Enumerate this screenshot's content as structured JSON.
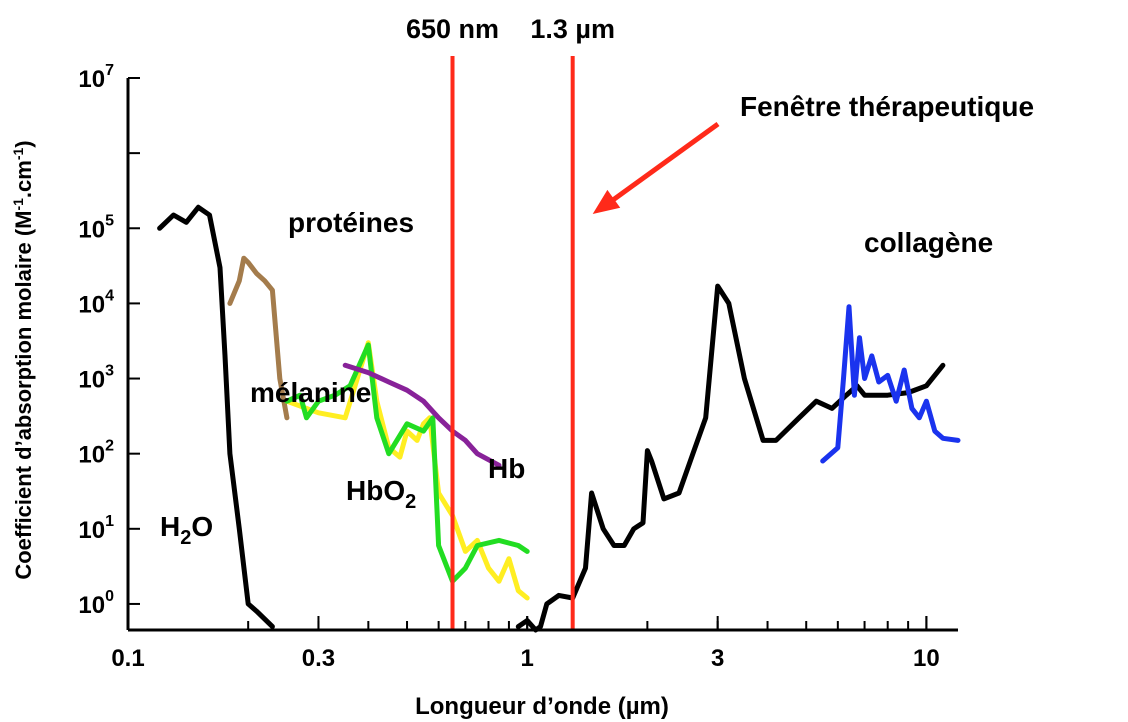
{
  "chart_data": {
    "type": "line",
    "xlabel": "Longueur d’onde (µm)",
    "ylabel": "Coefficient d’absorption molaire (M-1.cm-1)",
    "xscale": "log",
    "yscale": "log",
    "xlim": [
      0.1,
      12
    ],
    "ylim": [
      0.45,
      10000000.0
    ],
    "x_ticks": [
      {
        "value": 0.1,
        "label": "0.1"
      },
      {
        "value": 0.3,
        "label": "0.3"
      },
      {
        "value": 1,
        "label": "1"
      },
      {
        "value": 3,
        "label": "3"
      },
      {
        "value": 10,
        "label": "10"
      }
    ],
    "y_ticks": [
      {
        "value": 1,
        "base": "10",
        "exp": "0"
      },
      {
        "value": 10,
        "base": "10",
        "exp": "1"
      },
      {
        "value": 100,
        "base": "10",
        "exp": "2"
      },
      {
        "value": 1000,
        "base": "10",
        "exp": "3"
      },
      {
        "value": 10000,
        "base": "10",
        "exp": "4"
      },
      {
        "value": 100000,
        "base": "10",
        "exp": "5"
      },
      {
        "value": 10000000,
        "base": "10",
        "exp": "7"
      }
    ],
    "vlines": [
      {
        "x": 0.65,
        "label": "650 nm",
        "color": "#ff2a1a"
      },
      {
        "x": 1.3,
        "label": "1.3 µm",
        "color": "#ff2a1a"
      }
    ],
    "annotation": {
      "text": "Fenêtre thérapeutique",
      "color": "#ff2a1a"
    },
    "series": [
      {
        "name": "H2O",
        "color": "#000000",
        "points": [
          [
            0.12,
            100000
          ],
          [
            0.13,
            150000
          ],
          [
            0.14,
            120000
          ],
          [
            0.15,
            190000
          ],
          [
            0.16,
            150000
          ],
          [
            0.17,
            30000
          ],
          [
            0.175,
            2000
          ],
          [
            0.18,
            100
          ],
          [
            0.19,
            10
          ],
          [
            0.2,
            1
          ],
          [
            0.21,
            0.8
          ],
          [
            0.23,
            0.5
          ]
        ]
      },
      {
        "name": "",
        "color": "#000000",
        "points": [
          [
            0.95,
            0.5
          ],
          [
            1.0,
            0.6
          ],
          [
            1.05,
            0.45
          ],
          [
            1.08,
            0.5
          ],
          [
            1.12,
            1.0
          ],
          [
            1.2,
            1.3
          ],
          [
            1.3,
            1.2
          ],
          [
            1.4,
            3
          ],
          [
            1.45,
            30
          ],
          [
            1.55,
            10
          ],
          [
            1.65,
            6
          ],
          [
            1.75,
            6
          ],
          [
            1.85,
            10
          ],
          [
            1.95,
            12
          ],
          [
            2.0,
            110
          ],
          [
            2.05,
            80
          ],
          [
            2.2,
            25
          ],
          [
            2.4,
            30
          ],
          [
            2.6,
            100
          ],
          [
            2.8,
            300
          ],
          [
            3.0,
            17000
          ],
          [
            3.2,
            10000
          ],
          [
            3.5,
            1000
          ],
          [
            3.9,
            150
          ],
          [
            4.2,
            150
          ],
          [
            4.8,
            300
          ],
          [
            5.3,
            500
          ],
          [
            5.8,
            400
          ],
          [
            6.3,
            600
          ],
          [
            6.7,
            800
          ],
          [
            7.0,
            600
          ],
          [
            8.0,
            600
          ],
          [
            9.0,
            650
          ],
          [
            10.0,
            800
          ],
          [
            11.0,
            1500
          ]
        ]
      },
      {
        "name": "protéines",
        "color": "#a47c4c",
        "points": [
          [
            0.18,
            10000
          ],
          [
            0.19,
            20000
          ],
          [
            0.195,
            40000
          ],
          [
            0.2,
            35000
          ],
          [
            0.21,
            25000
          ],
          [
            0.22,
            20000
          ],
          [
            0.23,
            15000
          ],
          [
            0.24,
            1000
          ],
          [
            0.25,
            300
          ]
        ]
      },
      {
        "name": "Hb",
        "color": "#ffee22",
        "points": [
          [
            0.25,
            500
          ],
          [
            0.3,
            350
          ],
          [
            0.35,
            300
          ],
          [
            0.4,
            3000
          ],
          [
            0.42,
            500
          ],
          [
            0.45,
            120
          ],
          [
            0.48,
            90
          ],
          [
            0.5,
            200
          ],
          [
            0.53,
            150
          ],
          [
            0.55,
            250
          ],
          [
            0.57,
            300
          ],
          [
            0.6,
            30
          ],
          [
            0.65,
            15
          ],
          [
            0.7,
            5
          ],
          [
            0.75,
            7
          ],
          [
            0.8,
            3
          ],
          [
            0.85,
            2
          ],
          [
            0.9,
            4
          ],
          [
            0.95,
            1.5
          ],
          [
            1.0,
            1.2
          ]
        ]
      },
      {
        "name": "HbO2",
        "color": "#22dd22",
        "points": [
          [
            0.25,
            500
          ],
          [
            0.27,
            600
          ],
          [
            0.28,
            300
          ],
          [
            0.3,
            500
          ],
          [
            0.33,
            600
          ],
          [
            0.36,
            800
          ],
          [
            0.4,
            2800
          ],
          [
            0.42,
            300
          ],
          [
            0.45,
            100
          ],
          [
            0.5,
            250
          ],
          [
            0.55,
            200
          ],
          [
            0.58,
            300
          ],
          [
            0.6,
            6
          ],
          [
            0.65,
            2
          ],
          [
            0.7,
            3
          ],
          [
            0.75,
            6
          ],
          [
            0.85,
            7
          ],
          [
            0.95,
            6
          ],
          [
            1.0,
            5
          ]
        ]
      },
      {
        "name": "mélanine",
        "color": "#882299",
        "points": [
          [
            0.35,
            1500
          ],
          [
            0.4,
            1200
          ],
          [
            0.45,
            900
          ],
          [
            0.5,
            700
          ],
          [
            0.55,
            500
          ],
          [
            0.6,
            300
          ],
          [
            0.65,
            200
          ],
          [
            0.7,
            150
          ],
          [
            0.75,
            100
          ],
          [
            0.85,
            70
          ]
        ]
      },
      {
        "name": "collagène",
        "color": "#1a33ee",
        "points": [
          [
            5.5,
            80
          ],
          [
            6.0,
            120
          ],
          [
            6.2,
            1000
          ],
          [
            6.4,
            9000
          ],
          [
            6.6,
            600
          ],
          [
            6.8,
            3500
          ],
          [
            7.0,
            1000
          ],
          [
            7.3,
            2000
          ],
          [
            7.6,
            900
          ],
          [
            8.0,
            1100
          ],
          [
            8.4,
            500
          ],
          [
            8.8,
            1300
          ],
          [
            9.2,
            400
          ],
          [
            9.6,
            300
          ],
          [
            10.0,
            500
          ],
          [
            10.5,
            200
          ],
          [
            11.0,
            160
          ],
          [
            12.0,
            150
          ]
        ]
      }
    ],
    "series_labels": [
      {
        "series": 0,
        "text": "H",
        "sub": "2",
        "tail": "O"
      },
      {
        "series": 2,
        "text": "protéines",
        "sub": "",
        "tail": ""
      },
      {
        "series": 3,
        "text": "Hb",
        "sub": "",
        "tail": ""
      },
      {
        "series": 4,
        "text": "HbO",
        "sub": "2",
        "tail": ""
      },
      {
        "series": 5,
        "text": "mélanine",
        "sub": "",
        "tail": ""
      },
      {
        "series": 6,
        "text": "collagène",
        "sub": "",
        "tail": ""
      }
    ]
  }
}
